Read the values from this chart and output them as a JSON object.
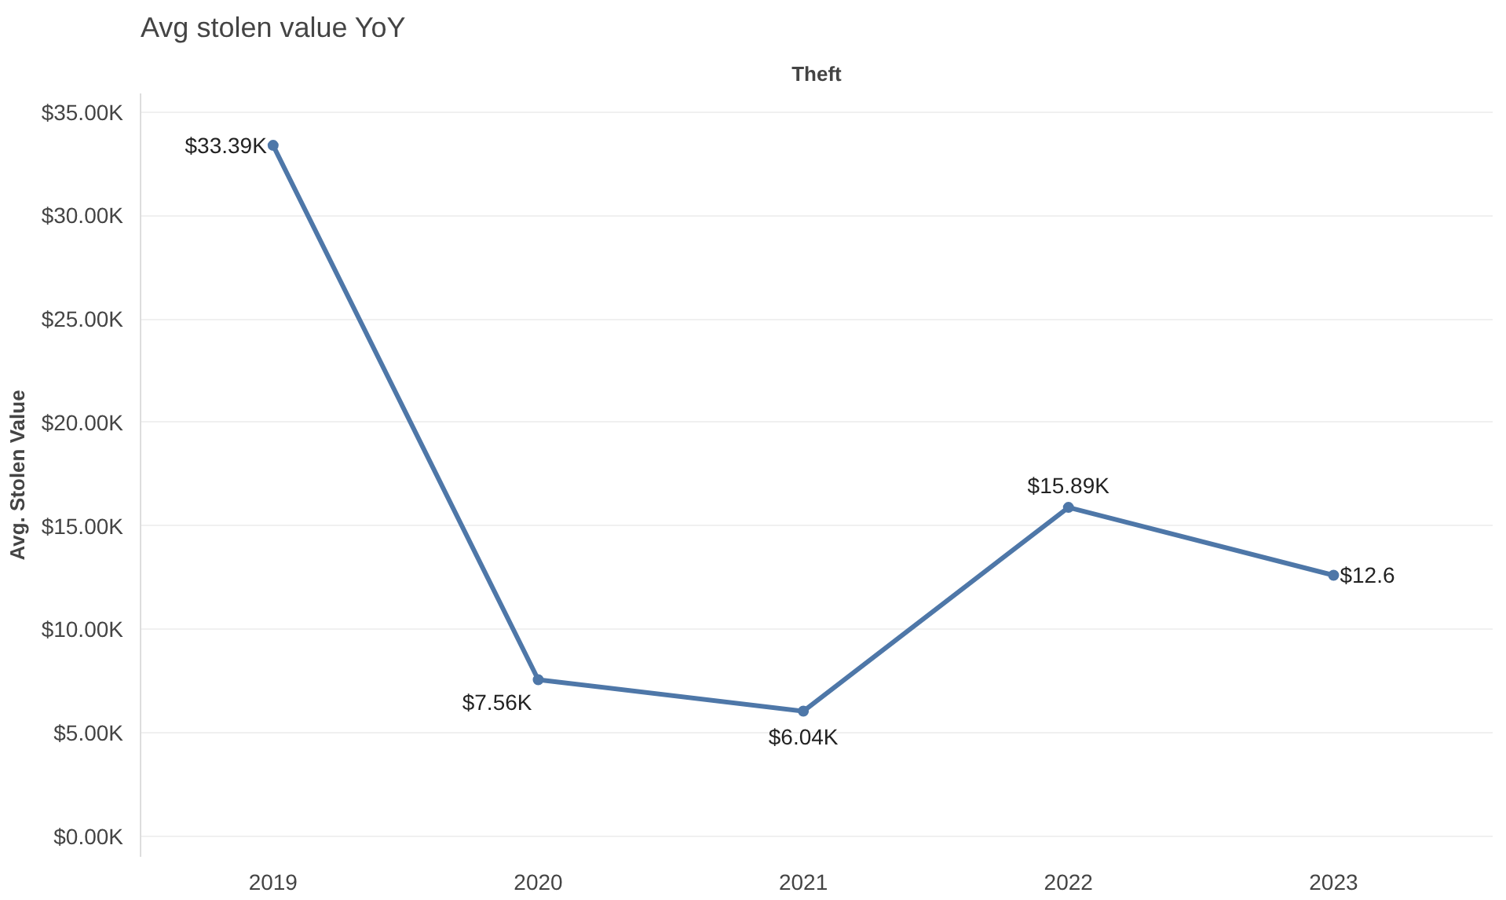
{
  "chart_data": {
    "type": "line",
    "title": "Avg stolen value YoY",
    "subtitle": "Theft",
    "ylabel": "Avg. Stolen Value",
    "categories": [
      "2019",
      "2020",
      "2021",
      "2022",
      "2023"
    ],
    "series": [
      {
        "color": "#4e77a8",
        "values": [
          33.39,
          7.56,
          6.04,
          15.89,
          12.61
        ],
        "value_labels": [
          "$33.39K",
          "$7.56K",
          "$6.04K",
          "$15.89K",
          "$12.6"
        ]
      }
    ],
    "ylim": [
      -1,
      35.9
    ],
    "yticks": [
      {
        "value": 0,
        "label": "$0.00K"
      },
      {
        "value": 5,
        "label": "$5.00K"
      },
      {
        "value": 10,
        "label": "$10.00K"
      },
      {
        "value": 15,
        "label": "$15.00K"
      },
      {
        "value": 20,
        "label": "$20.00K"
      },
      {
        "value": 25,
        "label": "$25.00K"
      },
      {
        "value": 30,
        "label": "$30.00K"
      },
      {
        "value": 35,
        "label": "$35.00K"
      }
    ],
    "grid": "y",
    "marker": "circle",
    "line_style": "solid"
  }
}
